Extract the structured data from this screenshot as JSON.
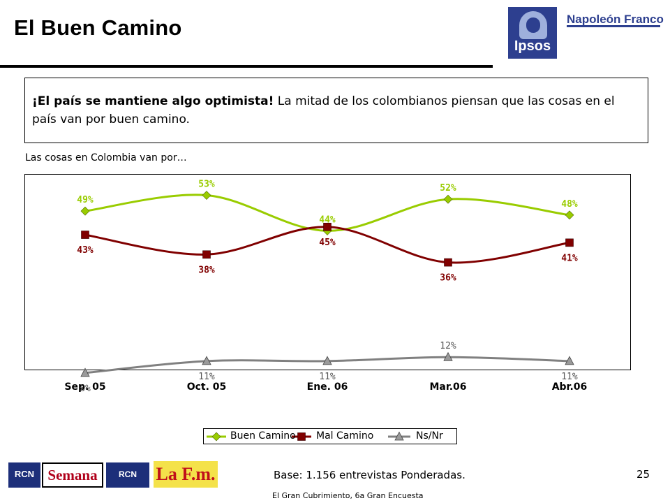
{
  "header": {
    "title": "El Buen Camino"
  },
  "logos": {
    "ipsos": "Ipsos",
    "napoleon": "Napoleón Franco",
    "rcn_radio": "RCN",
    "semana": "Semana",
    "rcn_tv": "RCN",
    "lafm": "La F.m."
  },
  "callout": {
    "bold": "¡El país se mantiene algo optimista!",
    "rest": " La mitad de los colombianos piensan que las cosas en el país van por buen camino."
  },
  "subtitle": "Las cosas en Colombia van por…",
  "chart_data": {
    "type": "line",
    "categories": [
      "Sep. 05",
      "Oct. 05",
      "Ene. 06",
      "Mar.06",
      "Abr.06"
    ],
    "series": [
      {
        "name": "Buen Camino",
        "values": [
          49,
          53,
          44,
          52,
          48
        ],
        "labels": [
          "49%",
          "53%",
          "44%",
          "52%",
          "48%"
        ],
        "color": "#99cc00",
        "marker": "diamond"
      },
      {
        "name": "Mal Camino",
        "values": [
          43,
          38,
          45,
          36,
          41
        ],
        "labels": [
          "43%",
          "38%",
          "45%",
          "36%",
          "41%"
        ],
        "color": "#800000",
        "marker": "square"
      },
      {
        "name": "Ns/Nr",
        "values": [
          8,
          11,
          11,
          12,
          11
        ],
        "labels": [
          "8%",
          "11%",
          "11%",
          "12%",
          "11%"
        ],
        "color": "#808080",
        "marker": "triangle"
      }
    ],
    "ylim": [
      0,
      60
    ],
    "grid": false,
    "legend": "bottom-center"
  },
  "footer": {
    "page": "25",
    "base": "Base: 1.156 entrevistas Ponderadas.",
    "source": "El Gran Cubrimiento, 6a Gran Encuesta"
  }
}
